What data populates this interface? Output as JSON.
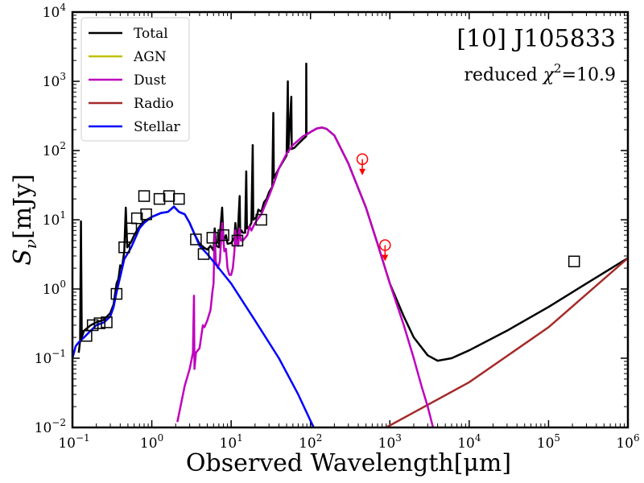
{
  "chart_data": {
    "type": "line",
    "xscale": "log",
    "yscale": "log",
    "xlim": [
      0.1,
      1000000
    ],
    "ylim": [
      0.01,
      10000
    ],
    "xlabel": "Observed Wavelength[μm]",
    "ylabel": "Sν [mJy]",
    "ylabel_main": "S",
    "ylabel_sub": "ν",
    "ylabel_unit": "[mJy]",
    "x_ticks": [
      {
        "value": 0.1,
        "base": "10",
        "exp": "−1"
      },
      {
        "value": 1,
        "base": "10",
        "exp": "0"
      },
      {
        "value": 10,
        "base": "10",
        "exp": "1"
      },
      {
        "value": 100,
        "base": "10",
        "exp": "2"
      },
      {
        "value": 1000,
        "base": "10",
        "exp": "3"
      },
      {
        "value": 10000,
        "base": "10",
        "exp": "4"
      },
      {
        "value": 100000,
        "base": "10",
        "exp": "5"
      },
      {
        "value": 1000000,
        "base": "10",
        "exp": "6"
      }
    ],
    "y_ticks": [
      {
        "value": 0.01,
        "base": "10",
        "exp": "−2"
      },
      {
        "value": 0.1,
        "base": "10",
        "exp": "−1"
      },
      {
        "value": 1,
        "base": "10",
        "exp": "0"
      },
      {
        "value": 10,
        "base": "10",
        "exp": "1"
      },
      {
        "value": 100,
        "base": "10",
        "exp": "2"
      },
      {
        "value": 1000,
        "base": "10",
        "exp": "3"
      },
      {
        "value": 10000,
        "base": "10",
        "exp": "4"
      }
    ],
    "annotations": {
      "object": "[10] J105833",
      "chi_prefix": "reduced ",
      "chi_symbol": "χ",
      "chi_sup": "2",
      "chi_value": "=10.9"
    },
    "legend": {
      "placement": "top-left",
      "entries": [
        {
          "label": "Total",
          "color": "#000000"
        },
        {
          "label": "AGN",
          "color": "#bfbf00"
        },
        {
          "label": "Dust",
          "color": "#bf00bf"
        },
        {
          "label": "Radio",
          "color": "#a52a2a"
        },
        {
          "label": "Stellar",
          "color": "#0000ff"
        }
      ]
    },
    "series": [
      {
        "name": "Total",
        "color": "#000000",
        "points": [
          [
            0.12,
            0.12
          ],
          [
            0.125,
            0.18
          ],
          [
            0.128,
            9.5
          ],
          [
            0.131,
            0.2
          ],
          [
            0.14,
            0.25
          ],
          [
            0.17,
            0.3
          ],
          [
            0.2,
            0.33
          ],
          [
            0.25,
            0.36
          ],
          [
            0.3,
            0.45
          ],
          [
            0.33,
            0.6
          ],
          [
            0.36,
            1.2
          ],
          [
            0.38,
            1.4
          ],
          [
            0.4,
            2.2
          ],
          [
            0.42,
            2.0
          ],
          [
            0.45,
            3.5
          ],
          [
            0.47,
            15
          ],
          [
            0.49,
            4.0
          ],
          [
            0.55,
            4.8
          ],
          [
            0.6,
            6.0
          ],
          [
            0.7,
            8.0
          ],
          [
            0.8,
            9.5
          ],
          [
            1.0,
            11.0
          ],
          [
            1.3,
            12.5
          ],
          [
            1.6,
            13.0
          ],
          [
            1.9,
            15.5
          ],
          [
            2.2,
            13.0
          ],
          [
            2.6,
            12.0
          ],
          [
            3.0,
            9.0
          ],
          [
            3.5,
            6.0
          ],
          [
            4.0,
            4.5
          ],
          [
            4.5,
            4.0
          ],
          [
            5.0,
            3.7
          ],
          [
            5.5,
            4.2
          ],
          [
            6.0,
            3.6
          ],
          [
            6.2,
            7.5
          ],
          [
            6.5,
            4.2
          ],
          [
            7.0,
            4.0
          ],
          [
            7.7,
            15
          ],
          [
            8.0,
            5.0
          ],
          [
            8.6,
            6.0
          ],
          [
            9.0,
            4.5
          ],
          [
            10.0,
            4.6
          ],
          [
            11.0,
            5.5
          ],
          [
            11.3,
            9.0
          ],
          [
            11.6,
            5.5
          ],
          [
            12.0,
            5.0
          ],
          [
            12.8,
            22
          ],
          [
            13.0,
            6.5
          ],
          [
            13.5,
            7.0
          ],
          [
            14.0,
            6.5
          ],
          [
            15.0,
            6.5
          ],
          [
            15.5,
            50
          ],
          [
            15.8,
            7.5
          ],
          [
            17.0,
            8.0
          ],
          [
            18.0,
            9.0
          ],
          [
            18.7,
            120
          ],
          [
            19.0,
            10.0
          ],
          [
            21.0,
            11.0
          ],
          [
            22.0,
            14.0
          ],
          [
            24.0,
            13.0
          ],
          [
            26.0,
            18.0
          ],
          [
            28.0,
            20.0
          ],
          [
            30.0,
            25.0
          ],
          [
            33.0,
            30.0
          ],
          [
            34.0,
            350
          ],
          [
            34.5,
            40.0
          ],
          [
            40.0,
            55.0
          ],
          [
            50.0,
            85.0
          ],
          [
            51.8,
            1000
          ],
          [
            52.5,
            95.0
          ],
          [
            57.3,
            600
          ],
          [
            58.0,
            105.0
          ],
          [
            63.0,
            110.0
          ],
          [
            70.0,
            125.0
          ],
          [
            80.0,
            145.0
          ],
          [
            88.0,
            160.0
          ],
          [
            88.4,
            1800
          ],
          [
            89.0,
            170.0
          ],
          [
            100,
            185
          ],
          [
            120,
            208
          ],
          [
            140,
            215
          ],
          [
            160,
            205
          ],
          [
            200,
            165
          ],
          [
            300,
            65
          ],
          [
            500,
            15
          ],
          [
            700,
            4.5
          ],
          [
            1000,
            1.2
          ],
          [
            1500,
            0.4
          ],
          [
            2000,
            0.2
          ],
          [
            3000,
            0.11
          ],
          [
            4000,
            0.092
          ],
          [
            6000,
            0.1
          ],
          [
            10000,
            0.13
          ],
          [
            30000,
            0.25
          ],
          [
            100000,
            0.55
          ],
          [
            300000,
            1.2
          ],
          [
            1000000,
            2.8
          ]
        ]
      },
      {
        "name": "Dust",
        "color": "#bf00bf",
        "points": [
          [
            2.1,
            0.012
          ],
          [
            2.6,
            0.04
          ],
          [
            3.0,
            0.07
          ],
          [
            3.3,
            0.12
          ],
          [
            3.4,
            0.8
          ],
          [
            3.45,
            0.07
          ],
          [
            3.6,
            0.12
          ],
          [
            4.0,
            0.14
          ],
          [
            4.4,
            0.3
          ],
          [
            4.6,
            0.28
          ],
          [
            5.0,
            0.35
          ],
          [
            5.5,
            0.5
          ],
          [
            5.8,
            0.9
          ],
          [
            6.0,
            1.2
          ],
          [
            6.2,
            6.5
          ],
          [
            6.4,
            2.5
          ],
          [
            6.8,
            2.0
          ],
          [
            7.2,
            2.5
          ],
          [
            7.7,
            9.0
          ],
          [
            8.2,
            3.5
          ],
          [
            8.6,
            3.8
          ],
          [
            9.0,
            2.0
          ],
          [
            9.5,
            1.6
          ],
          [
            10.0,
            1.6
          ],
          [
            10.5,
            2.0
          ],
          [
            11.0,
            3.5
          ],
          [
            11.3,
            7.0
          ],
          [
            11.7,
            4.5
          ],
          [
            12.3,
            4.2
          ],
          [
            12.7,
            7.5
          ],
          [
            13.3,
            5.0
          ],
          [
            14.0,
            5.0
          ],
          [
            16.0,
            6.0
          ],
          [
            17.0,
            8.0
          ],
          [
            18.0,
            7.0
          ],
          [
            20.0,
            9.0
          ],
          [
            24.0,
            12.0
          ],
          [
            30.0,
            22.0
          ],
          [
            35.0,
            35.0
          ],
          [
            40.0,
            55.0
          ],
          [
            50.0,
            90.0
          ],
          [
            60.0,
            120.0
          ],
          [
            70.0,
            140.0
          ],
          [
            80.0,
            160.0
          ],
          [
            100,
            185
          ],
          [
            120,
            208
          ],
          [
            140,
            215
          ],
          [
            160,
            205
          ],
          [
            200,
            165
          ],
          [
            300,
            65
          ],
          [
            500,
            15
          ],
          [
            700,
            4.5
          ],
          [
            1000,
            1.2
          ],
          [
            1500,
            0.3
          ],
          [
            2000,
            0.1
          ],
          [
            2500,
            0.04
          ],
          [
            3000,
            0.02
          ],
          [
            3500,
            0.01
          ]
        ]
      },
      {
        "name": "Stellar",
        "color": "#0000ff",
        "points": [
          [
            0.1,
            0.1
          ],
          [
            0.11,
            0.15
          ],
          [
            0.12,
            0.17
          ],
          [
            0.14,
            0.2
          ],
          [
            0.17,
            0.25
          ],
          [
            0.2,
            0.3
          ],
          [
            0.25,
            0.33
          ],
          [
            0.3,
            0.4
          ],
          [
            0.33,
            0.55
          ],
          [
            0.36,
            0.9
          ],
          [
            0.4,
            1.5
          ],
          [
            0.45,
            2.7
          ],
          [
            0.5,
            3.3
          ],
          [
            0.55,
            4.0
          ],
          [
            0.6,
            5.0
          ],
          [
            0.7,
            7.5
          ],
          [
            0.8,
            9.0
          ],
          [
            1.0,
            11.0
          ],
          [
            1.3,
            12.5
          ],
          [
            1.6,
            13.0
          ],
          [
            1.9,
            15.5
          ],
          [
            2.2,
            13.0
          ],
          [
            2.6,
            12.0
          ],
          [
            3.0,
            9.0
          ],
          [
            3.5,
            6.0
          ],
          [
            4.0,
            4.2
          ],
          [
            5.0,
            3.2
          ],
          [
            7.0,
            2.0
          ],
          [
            10.0,
            1.2
          ],
          [
            20.0,
            0.35
          ],
          [
            40.0,
            0.1
          ],
          [
            70.0,
            0.03
          ],
          [
            100,
            0.0125
          ],
          [
            110,
            0.01
          ]
        ]
      },
      {
        "name": "Radio",
        "color": "#a52a2a",
        "points": [
          [
            900,
            0.01
          ],
          [
            10000,
            0.045
          ],
          [
            100000,
            0.28
          ],
          [
            1000000,
            2.8
          ]
        ]
      },
      {
        "name": "AGN",
        "color": "#bfbf00",
        "points": []
      }
    ],
    "observations": {
      "marker": "open-square",
      "points": [
        [
          0.15,
          0.21
        ],
        [
          0.18,
          0.3
        ],
        [
          0.22,
          0.32
        ],
        [
          0.27,
          0.33
        ],
        [
          0.36,
          0.85
        ],
        [
          0.45,
          4.0
        ],
        [
          0.55,
          7.5
        ],
        [
          0.65,
          10.5
        ],
        [
          0.8,
          22.0
        ],
        [
          0.85,
          12.0
        ],
        [
          1.25,
          20.0
        ],
        [
          1.65,
          22.0
        ],
        [
          2.2,
          20.0
        ],
        [
          3.6,
          5.2
        ],
        [
          4.5,
          3.2
        ],
        [
          5.8,
          5.5
        ],
        [
          8.0,
          6.0
        ],
        [
          12.0,
          5.0
        ],
        [
          24.0,
          10.0
        ],
        [
          210000,
          2.5
        ]
      ]
    },
    "upper_limits": {
      "color": "#ff0000",
      "marker": "open-circle-with-down-arrow",
      "points": [
        [
          450,
          75
        ],
        [
          870,
          4.3
        ]
      ]
    }
  }
}
